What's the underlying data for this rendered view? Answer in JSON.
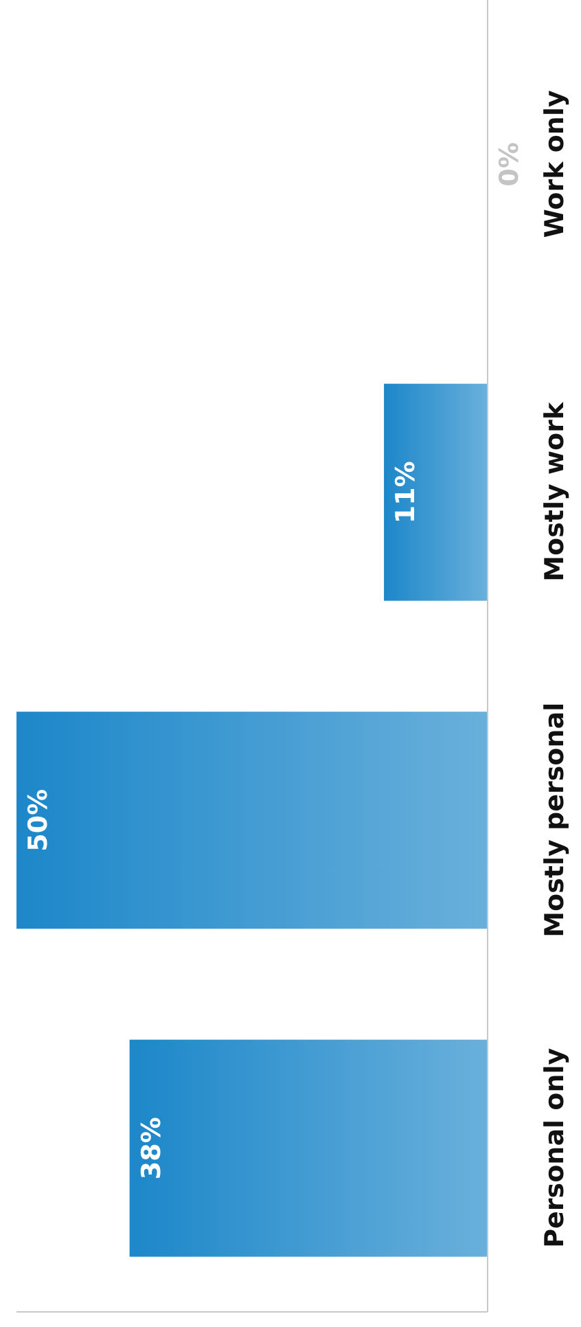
{
  "chart_data": {
    "type": "bar",
    "orientation": "horizontal",
    "categories": [
      "Work only",
      "Mostly work",
      "Mostly personal",
      "Personal only"
    ],
    "values": [
      0,
      11,
      50,
      38
    ],
    "value_labels": [
      "0%",
      "11%",
      "50%",
      "38%"
    ],
    "color": "#1c87c9",
    "tick_labels": "y",
    "grid": false
  }
}
